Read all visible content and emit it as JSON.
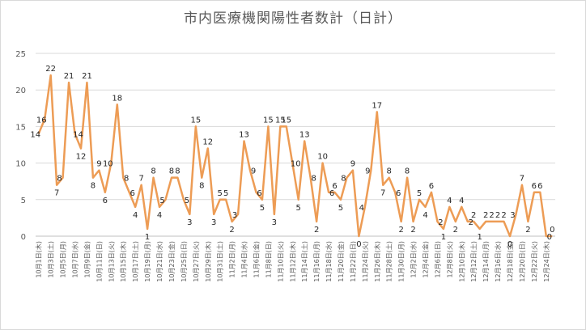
{
  "chart_data": {
    "type": "line",
    "title": "市内医療機関陽性者数計（日計）",
    "ylim": [
      0,
      25
    ],
    "yticks": [
      0,
      5,
      10,
      15,
      20,
      25
    ],
    "grid": true,
    "legend": "none",
    "line_color": "#ED9C55",
    "categories": [
      "10月1日(木)",
      "10月2日(金)",
      "10月3日(土)",
      "10月4日(日)",
      "10月5日(月)",
      "10月6日(火)",
      "10月7日(水)",
      "10月8日(木)",
      "10月9日(金)",
      "10月10日(土)",
      "10月11日(日)",
      "10月12日(月)",
      "10月13日(火)",
      "10月14日(水)",
      "10月15日(木)",
      "10月16日(金)",
      "10月17日(土)",
      "10月18日(日)",
      "10月19日(月)",
      "10月20日(火)",
      "10月21日(水)",
      "10月22日(木)",
      "10月23日(金)",
      "10月24日(土)",
      "10月25日(日)",
      "10月26日(月)",
      "10月27日(火)",
      "10月28日(水)",
      "10月29日(木)",
      "10月30日(金)",
      "10月31日(土)",
      "11月1日(日)",
      "11月2日(月)",
      "11月3日(火)",
      "11月4日(水)",
      "11月5日(木)",
      "11月6日(金)",
      "11月7日(土)",
      "11月8日(日)",
      "11月9日(月)",
      "11月10日(火)",
      "11月11日(水)",
      "11月12日(木)",
      "11月13日(金)",
      "11月14日(土)",
      "11月15日(日)",
      "11月16日(月)",
      "11月17日(火)",
      "11月18日(水)",
      "11月19日(木)",
      "11月20日(金)",
      "11月21日(土)",
      "11月22日(日)",
      "11月23日(月)",
      "11月24日(火)",
      "11月25日(水)",
      "11月26日(木)",
      "11月27日(金)",
      "11月28日(土)",
      "11月29日(日)",
      "11月30日(月)",
      "12月1日(火)",
      "12月2日(水)",
      "12月3日(木)",
      "12月4日(金)",
      "12月5日(土)",
      "12月6日(日)",
      "12月7日(月)",
      "12月8日(火)",
      "12月9日(水)",
      "12月10日(木)",
      "12月11日(金)",
      "12月12日(土)",
      "12月13日(日)",
      "12月14日(月)",
      "12月15日(火)",
      "12月16日(水)",
      "12月17日(木)",
      "12月18日(金)",
      "12月19日(土)",
      "12月20日(日)",
      "12月21日(月)",
      "12月22日(火)",
      "12月23日(水)",
      "12月24日(木)",
      "12月25日(金)"
    ],
    "values": [
      14,
      16,
      22,
      7,
      8,
      21,
      14,
      12,
      21,
      8,
      9,
      6,
      10,
      18,
      8,
      6,
      4,
      7,
      1,
      8,
      4,
      5,
      8,
      8,
      5,
      3,
      15,
      8,
      12,
      3,
      5,
      5,
      2,
      3,
      13,
      9,
      6,
      5,
      15,
      3,
      15,
      15,
      10,
      5,
      13,
      8,
      2,
      10,
      6,
      6,
      5,
      8,
      9,
      0,
      4,
      9,
      17,
      7,
      8,
      6,
      2,
      8,
      2,
      5,
      4,
      6,
      2,
      1,
      4,
      2,
      4,
      2,
      2,
      1,
      2,
      2,
      2,
      2,
      0,
      3,
      7,
      2,
      6,
      6,
      0,
      0
    ]
  }
}
